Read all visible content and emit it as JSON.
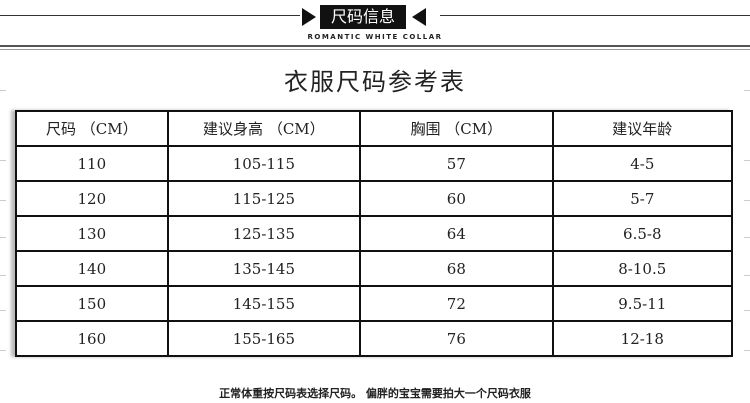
{
  "header": {
    "banner": "尺码信息",
    "subtitle": "ROMANTIC WHITE COLLAR"
  },
  "title": "衣服尺码参考表",
  "table": {
    "headers": [
      "尺码 （CM）",
      "建议身高 （CM）",
      "胸围 （CM）",
      "建议年龄"
    ],
    "rows": [
      [
        "110",
        "105-115",
        "57",
        "4-5"
      ],
      [
        "120",
        "115-125",
        "60",
        "5-7"
      ],
      [
        "130",
        "125-135",
        "64",
        "6.5-8"
      ],
      [
        "140",
        "135-145",
        "68",
        "8-10.5"
      ],
      [
        "150",
        "145-155",
        "72",
        "9.5-11"
      ],
      [
        "160",
        "155-165",
        "76",
        "12-18"
      ]
    ]
  },
  "footer": "正常体重按尺码表选择尺码。 偏胖的宝宝需要拍大一个尺码衣服"
}
